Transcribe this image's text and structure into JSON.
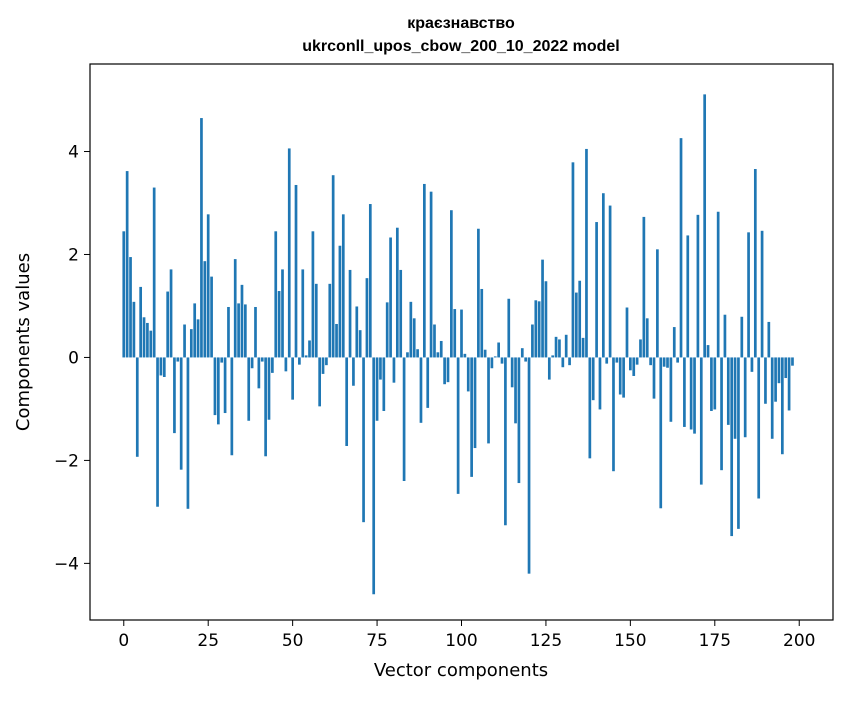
{
  "chart_data": {
    "type": "bar",
    "title_line1": "краєзнавство",
    "title_line2": "ukrconll_upos_cbow_200_10_2022 model",
    "xlabel": "Vector components",
    "ylabel": "Components values",
    "xlim": [
      -10,
      210
    ],
    "ylim": [
      -5.1,
      5.7
    ],
    "xticks": [
      0,
      25,
      50,
      75,
      100,
      125,
      150,
      175,
      200
    ],
    "yticks": [
      -4,
      -2,
      0,
      2,
      4
    ],
    "grid": false,
    "bar_color": "#1f77b4",
    "values": [
      2.45,
      3.62,
      1.95,
      1.08,
      -1.93,
      1.37,
      0.78,
      0.67,
      0.52,
      3.3,
      -2.9,
      -0.35,
      -0.38,
      1.28,
      1.71,
      -1.47,
      -0.08,
      -2.18,
      0.64,
      -2.94,
      0.55,
      1.05,
      0.74,
      4.65,
      1.87,
      2.78,
      1.57,
      -1.12,
      -1.3,
      -0.1,
      -1.08,
      0.98,
      -1.9,
      1.91,
      1.05,
      1.41,
      1.03,
      -1.23,
      -0.21,
      0.98,
      -0.6,
      -0.08,
      -1.92,
      -1.21,
      -0.3,
      2.45,
      1.29,
      1.71,
      -0.27,
      4.06,
      -0.82,
      3.35,
      -0.14,
      1.71,
      0.04,
      0.33,
      2.45,
      1.43,
      -0.95,
      -0.32,
      -0.15,
      1.43,
      3.54,
      0.65,
      2.17,
      2.78,
      -1.72,
      1.7,
      -0.55,
      0.99,
      0.53,
      -3.2,
      1.54,
      2.98,
      -4.6,
      -1.23,
      -0.43,
      -1.04,
      1.07,
      2.33,
      -0.49,
      2.52,
      1.7,
      -2.4,
      0.1,
      1.08,
      0.76,
      0.16,
      -1.27,
      3.37,
      -0.98,
      3.22,
      0.64,
      0.1,
      0.32,
      -0.52,
      -0.48,
      2.86,
      0.94,
      -2.65,
      0.93,
      0.07,
      -0.66,
      -2.32,
      -1.76,
      2.5,
      1.33,
      0.15,
      -1.67,
      -0.21,
      0.02,
      0.29,
      -0.12,
      -3.26,
      1.14,
      -0.58,
      -1.28,
      -2.44,
      0.18,
      -0.08,
      -4.2,
      0.64,
      1.11,
      1.09,
      1.9,
      1.48,
      -0.43,
      0.04,
      0.4,
      0.35,
      -0.19,
      0.44,
      -0.15,
      3.79,
      1.26,
      1.49,
      0.38,
      4.05,
      -1.96,
      -0.83,
      2.63,
      -1.01,
      3.19,
      -0.12,
      2.95,
      -2.21,
      -0.1,
      -0.72,
      -0.78,
      0.97,
      -0.25,
      -0.36,
      -0.14,
      0.35,
      2.73,
      0.76,
      -0.15,
      -0.8,
      2.1,
      -2.93,
      -0.18,
      -0.2,
      -1.25,
      0.59,
      -0.1,
      4.26,
      -1.35,
      2.37,
      -1.4,
      -1.48,
      2.77,
      -2.47,
      5.11,
      0.24,
      -1.04,
      -1.01,
      2.83,
      -2.19,
      0.83,
      -1.31,
      -3.47,
      -1.58,
      -3.33,
      0.79,
      -1.55,
      2.43,
      -0.28,
      3.66,
      -2.74,
      2.46,
      -0.9,
      0.69,
      -1.58,
      -0.86,
      -0.5,
      -1.88,
      -0.4,
      -1.03,
      -0.16
    ]
  }
}
